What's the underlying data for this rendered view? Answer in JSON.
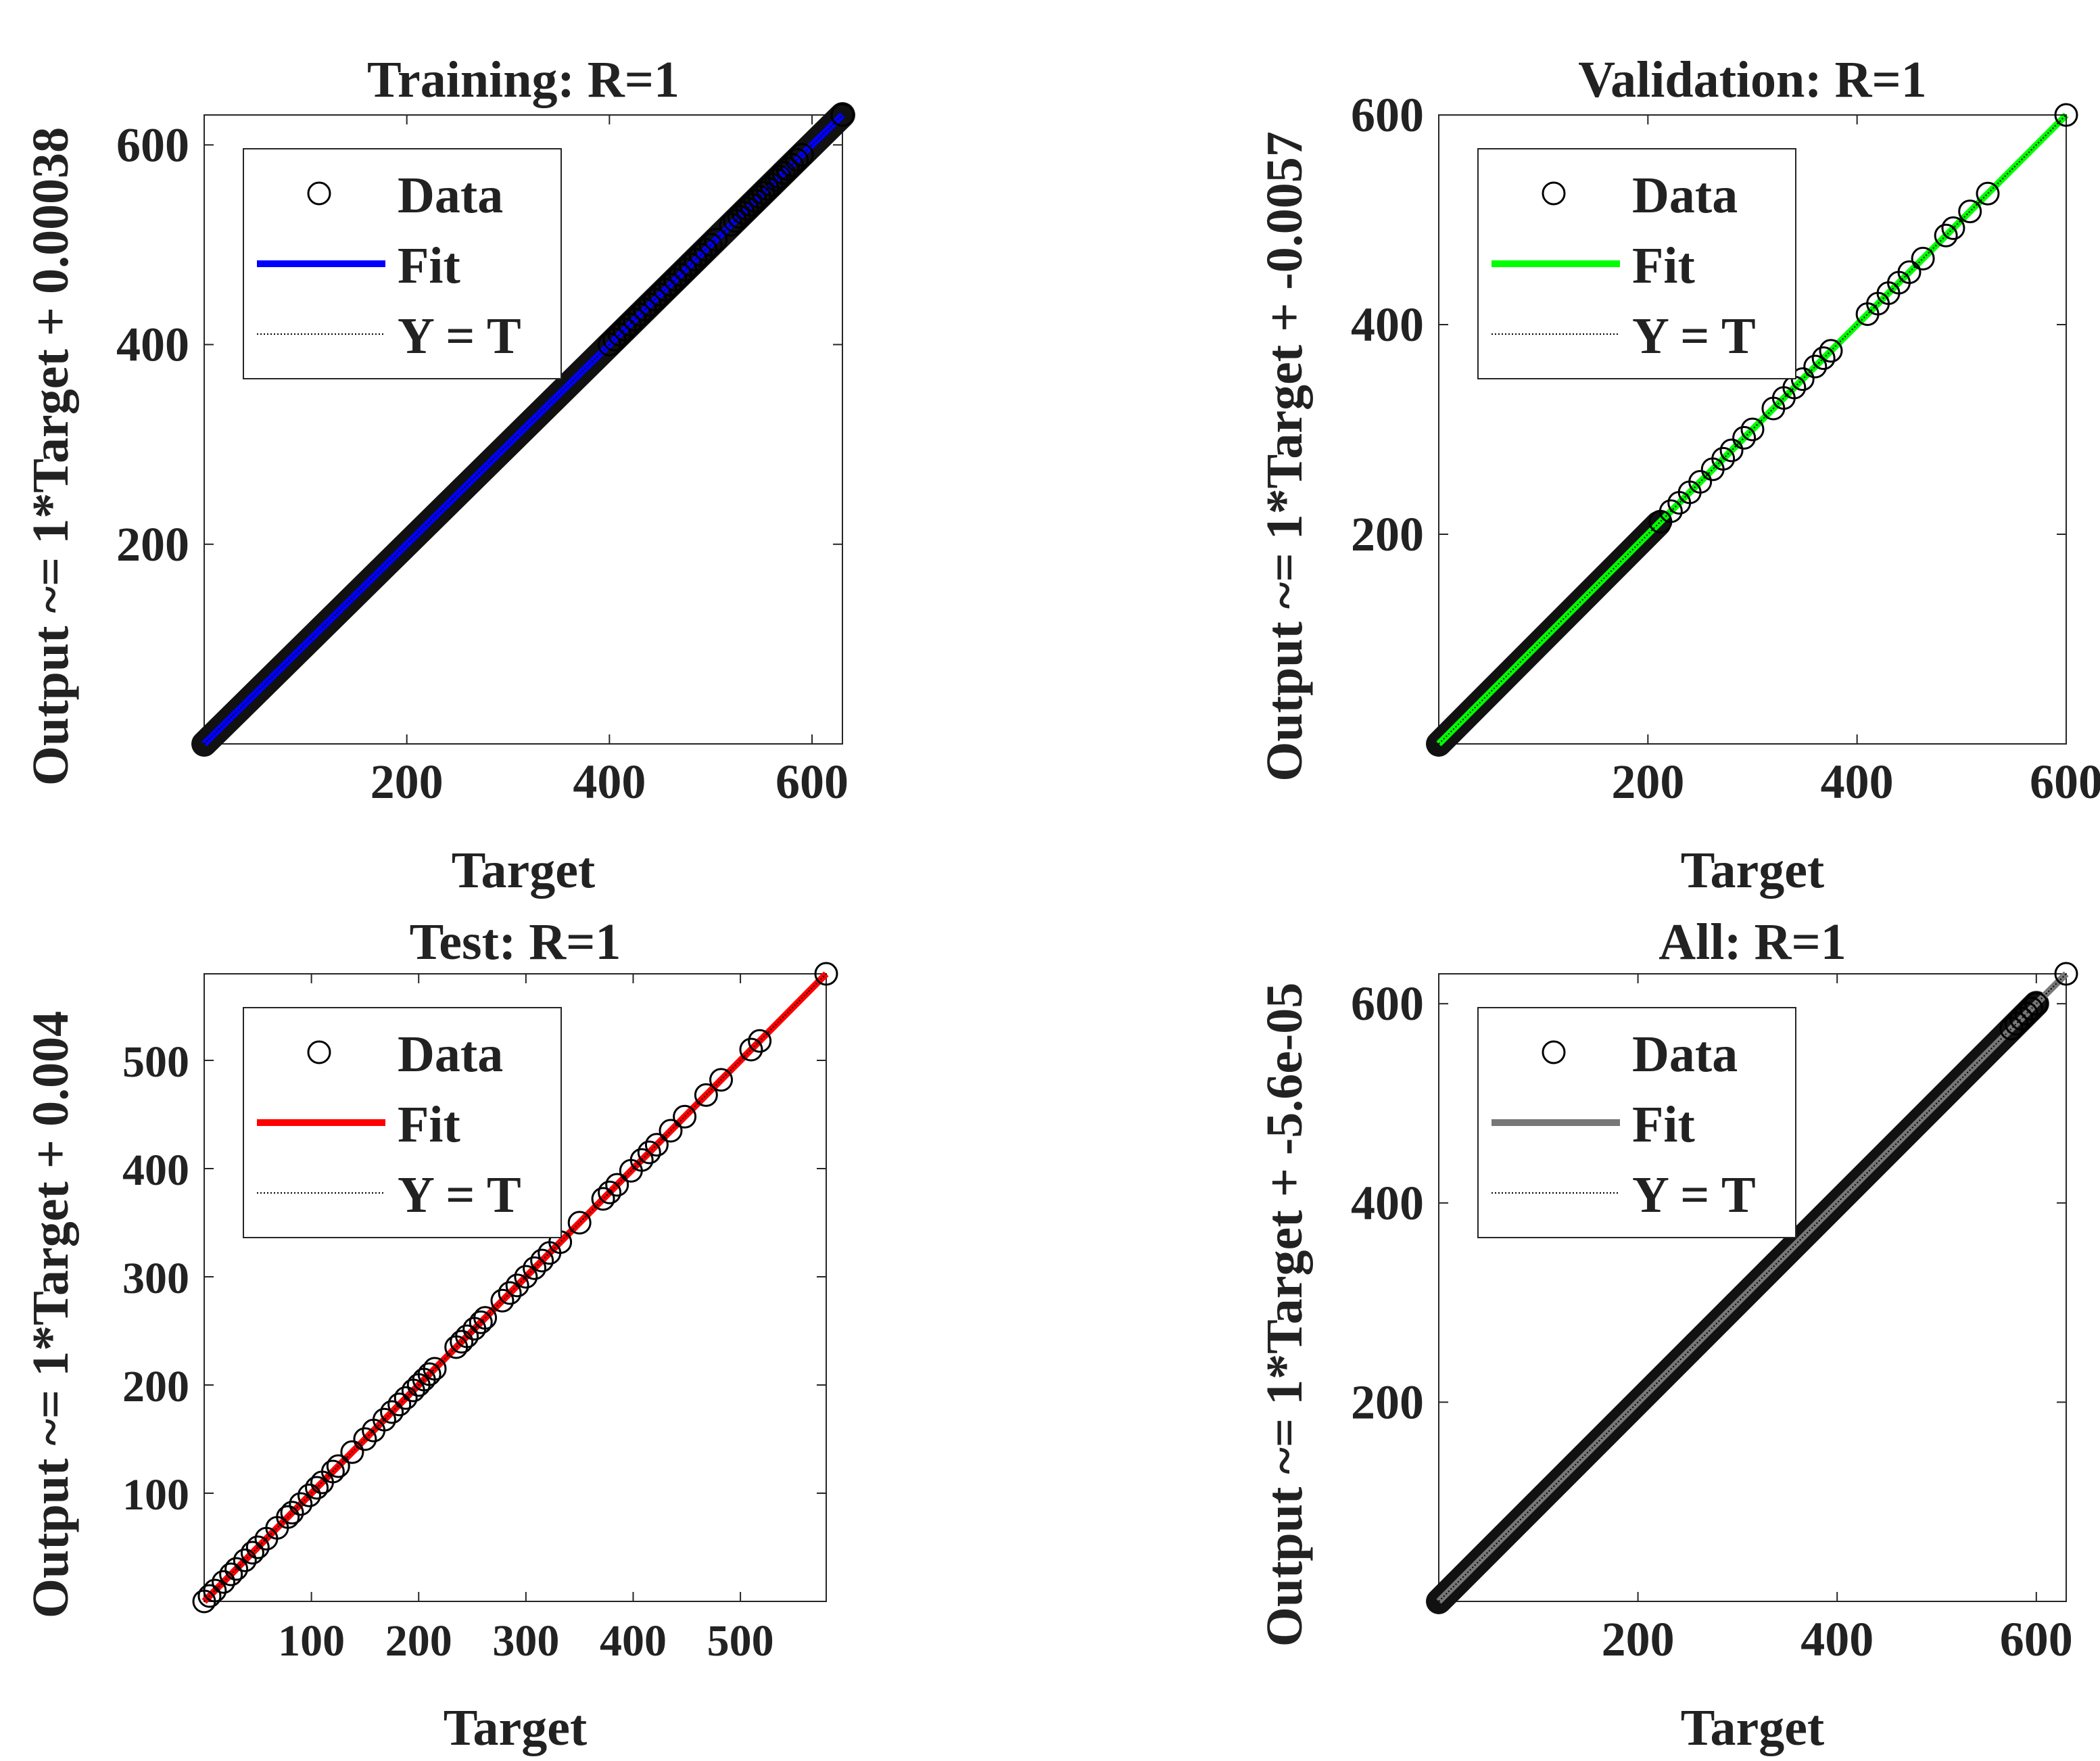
{
  "chart_data": [
    {
      "id": "training",
      "type": "scatter",
      "title": "Training: R=1",
      "xlabel": "Target",
      "ylabel": "Output ~= 1*Target + 0.00038",
      "xlim": [
        0,
        630
      ],
      "ylim": [
        0,
        630
      ],
      "xticks": [
        200,
        400,
        600
      ],
      "yticks": [
        200,
        400,
        600
      ],
      "fit": {
        "slope": 1,
        "intercept": 0.00038,
        "color": "#0000ff"
      },
      "legend": {
        "position": "top-left",
        "entries": [
          "Data",
          "Fit",
          "Y = T"
        ]
      },
      "grid": false,
      "data_range": [
        0,
        630
      ],
      "points": [
        630,
        590,
        585,
        580,
        576,
        572,
        568,
        565,
        560,
        556,
        552,
        548,
        544,
        540,
        536,
        532,
        528,
        524,
        520,
        505,
        500,
        495,
        490,
        485,
        480,
        475,
        470,
        465,
        460,
        455,
        450,
        445,
        440,
        435,
        430,
        425,
        420,
        415,
        410,
        405,
        400
      ]
    },
    {
      "id": "validation",
      "type": "scatter",
      "title": "Validation: R=1",
      "xlabel": "Target",
      "ylabel": "Output ~= 1*Target + -0.0057",
      "xlim": [
        0,
        600
      ],
      "ylim": [
        0,
        600
      ],
      "xticks": [
        200,
        400,
        600
      ],
      "yticks": [
        200,
        400,
        600
      ],
      "fit": {
        "slope": 1,
        "intercept": -0.0057,
        "color": "#00ff00"
      },
      "legend": {
        "position": "top-left",
        "entries": [
          "Data",
          "Fit",
          "Y = T"
        ]
      },
      "grid": false,
      "data_range": [
        0,
        210
      ],
      "points": [
        600,
        525,
        508,
        492,
        485,
        463,
        450,
        440,
        430,
        420,
        410,
        375,
        368,
        360,
        348,
        340,
        330,
        320,
        300,
        292,
        280,
        272,
        262,
        250,
        240,
        230,
        222,
        212
      ]
    },
    {
      "id": "test",
      "type": "scatter",
      "title": "Test: R=1",
      "xlabel": "Target",
      "ylabel": "Output ~= 1*Target + 0.004",
      "xlim": [
        0,
        580
      ],
      "ylim": [
        0,
        580
      ],
      "xticks": [
        100,
        200,
        300,
        400,
        500
      ],
      "yticks": [
        100,
        200,
        300,
        400,
        500
      ],
      "fit": {
        "slope": 1,
        "intercept": 0.004,
        "color": "#ff0000"
      },
      "legend": {
        "position": "top-left",
        "entries": [
          "Data",
          "Fit",
          "Y = T"
        ]
      },
      "grid": false,
      "data_range": null,
      "points": [
        0,
        5,
        10,
        18,
        25,
        30,
        38,
        45,
        50,
        58,
        68,
        78,
        82,
        90,
        98,
        105,
        110,
        120,
        125,
        138,
        150,
        158,
        168,
        175,
        182,
        188,
        195,
        200,
        205,
        210,
        215,
        235,
        240,
        245,
        252,
        258,
        262,
        278,
        285,
        292,
        300,
        308,
        315,
        322,
        332,
        350,
        372,
        378,
        385,
        398,
        408,
        415,
        422,
        435,
        448,
        468,
        482,
        510,
        518,
        580
      ]
    },
    {
      "id": "all",
      "type": "scatter",
      "title": "All: R=1",
      "xlabel": "Target",
      "ylabel": "Output ~= 1*Target + -5.6e-05",
      "xlim": [
        0,
        630
      ],
      "ylim": [
        0,
        630
      ],
      "xticks": [
        200,
        400,
        600
      ],
      "yticks": [
        200,
        400,
        600
      ],
      "fit": {
        "slope": 1,
        "intercept": -5.6e-05,
        "color": "#777777"
      },
      "legend": {
        "position": "top-left",
        "entries": [
          "Data",
          "Fit",
          "Y = T"
        ]
      },
      "grid": false,
      "data_range": [
        0,
        600
      ],
      "points": [
        630,
        600,
        595,
        590,
        585,
        580,
        575
      ]
    }
  ]
}
